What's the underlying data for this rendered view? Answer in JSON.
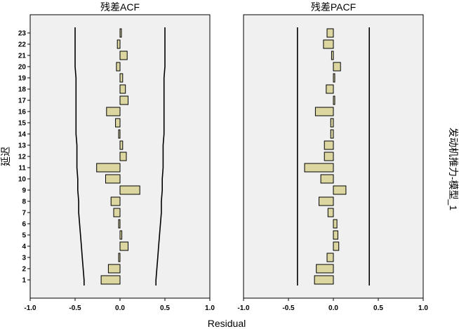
{
  "chart_data": [
    {
      "type": "bar",
      "orientation": "horizontal",
      "title": "残差ACF",
      "lags": [
        1,
        2,
        3,
        4,
        5,
        6,
        7,
        8,
        9,
        10,
        11,
        12,
        13,
        14,
        15,
        16,
        17,
        18,
        19,
        20,
        21,
        22,
        23
      ],
      "values": [
        -0.21,
        -0.13,
        -0.01,
        0.09,
        0.02,
        -0.01,
        -0.07,
        -0.1,
        0.22,
        -0.16,
        -0.26,
        0.07,
        0.03,
        -0.01,
        -0.05,
        -0.15,
        0.09,
        0.06,
        0.03,
        -0.04,
        0.08,
        -0.03,
        0.01
      ],
      "conf_upper": [
        0.4,
        0.41,
        0.42,
        0.43,
        0.44,
        0.45,
        0.46,
        0.46,
        0.47,
        0.47,
        0.48,
        0.48,
        0.48,
        0.49,
        0.49,
        0.49,
        0.49,
        0.49,
        0.49,
        0.5,
        0.5,
        0.5,
        0.5
      ],
      "conf_lower": [
        -0.4,
        -0.41,
        -0.42,
        -0.43,
        -0.44,
        -0.45,
        -0.46,
        -0.46,
        -0.47,
        -0.47,
        -0.48,
        -0.48,
        -0.48,
        -0.49,
        -0.49,
        -0.49,
        -0.49,
        -0.49,
        -0.49,
        -0.5,
        -0.5,
        -0.5,
        -0.5
      ],
      "xlim": [
        -1.0,
        1.0
      ],
      "xticks": [
        "-1.0",
        "-0.5",
        "0.0",
        "0.5",
        "1.0"
      ]
    },
    {
      "type": "bar",
      "orientation": "horizontal",
      "title": "残差PACF",
      "lags": [
        1,
        2,
        3,
        4,
        5,
        6,
        7,
        8,
        9,
        10,
        11,
        12,
        13,
        14,
        15,
        16,
        17,
        18,
        19,
        20,
        21,
        22,
        23
      ],
      "values": [
        -0.21,
        -0.19,
        -0.07,
        0.06,
        0.05,
        0.04,
        -0.06,
        -0.16,
        0.14,
        -0.14,
        -0.32,
        -0.1,
        -0.1,
        -0.03,
        -0.03,
        -0.2,
        0.01,
        -0.08,
        0.01,
        0.08,
        -0.02,
        -0.11,
        -0.07
      ],
      "conf_upper": [
        0.4,
        0.4,
        0.4,
        0.4,
        0.4,
        0.4,
        0.4,
        0.4,
        0.4,
        0.4,
        0.4,
        0.4,
        0.4,
        0.4,
        0.4,
        0.4,
        0.4,
        0.4,
        0.4,
        0.4,
        0.4,
        0.4,
        0.4
      ],
      "conf_lower": [
        -0.4,
        -0.4,
        -0.4,
        -0.4,
        -0.4,
        -0.4,
        -0.4,
        -0.4,
        -0.4,
        -0.4,
        -0.4,
        -0.4,
        -0.4,
        -0.4,
        -0.4,
        -0.4,
        -0.4,
        -0.4,
        -0.4,
        -0.4,
        -0.4,
        -0.4,
        -0.4
      ],
      "xlim": [
        -1.0,
        1.0
      ],
      "xticks": [
        "-1.0",
        "-0.5",
        "0.0",
        "0.5",
        "1.0"
      ]
    }
  ],
  "labels": {
    "xlabel": "Residual",
    "ylabel": "延迟",
    "right_label": "发动机推力-模型_1"
  }
}
